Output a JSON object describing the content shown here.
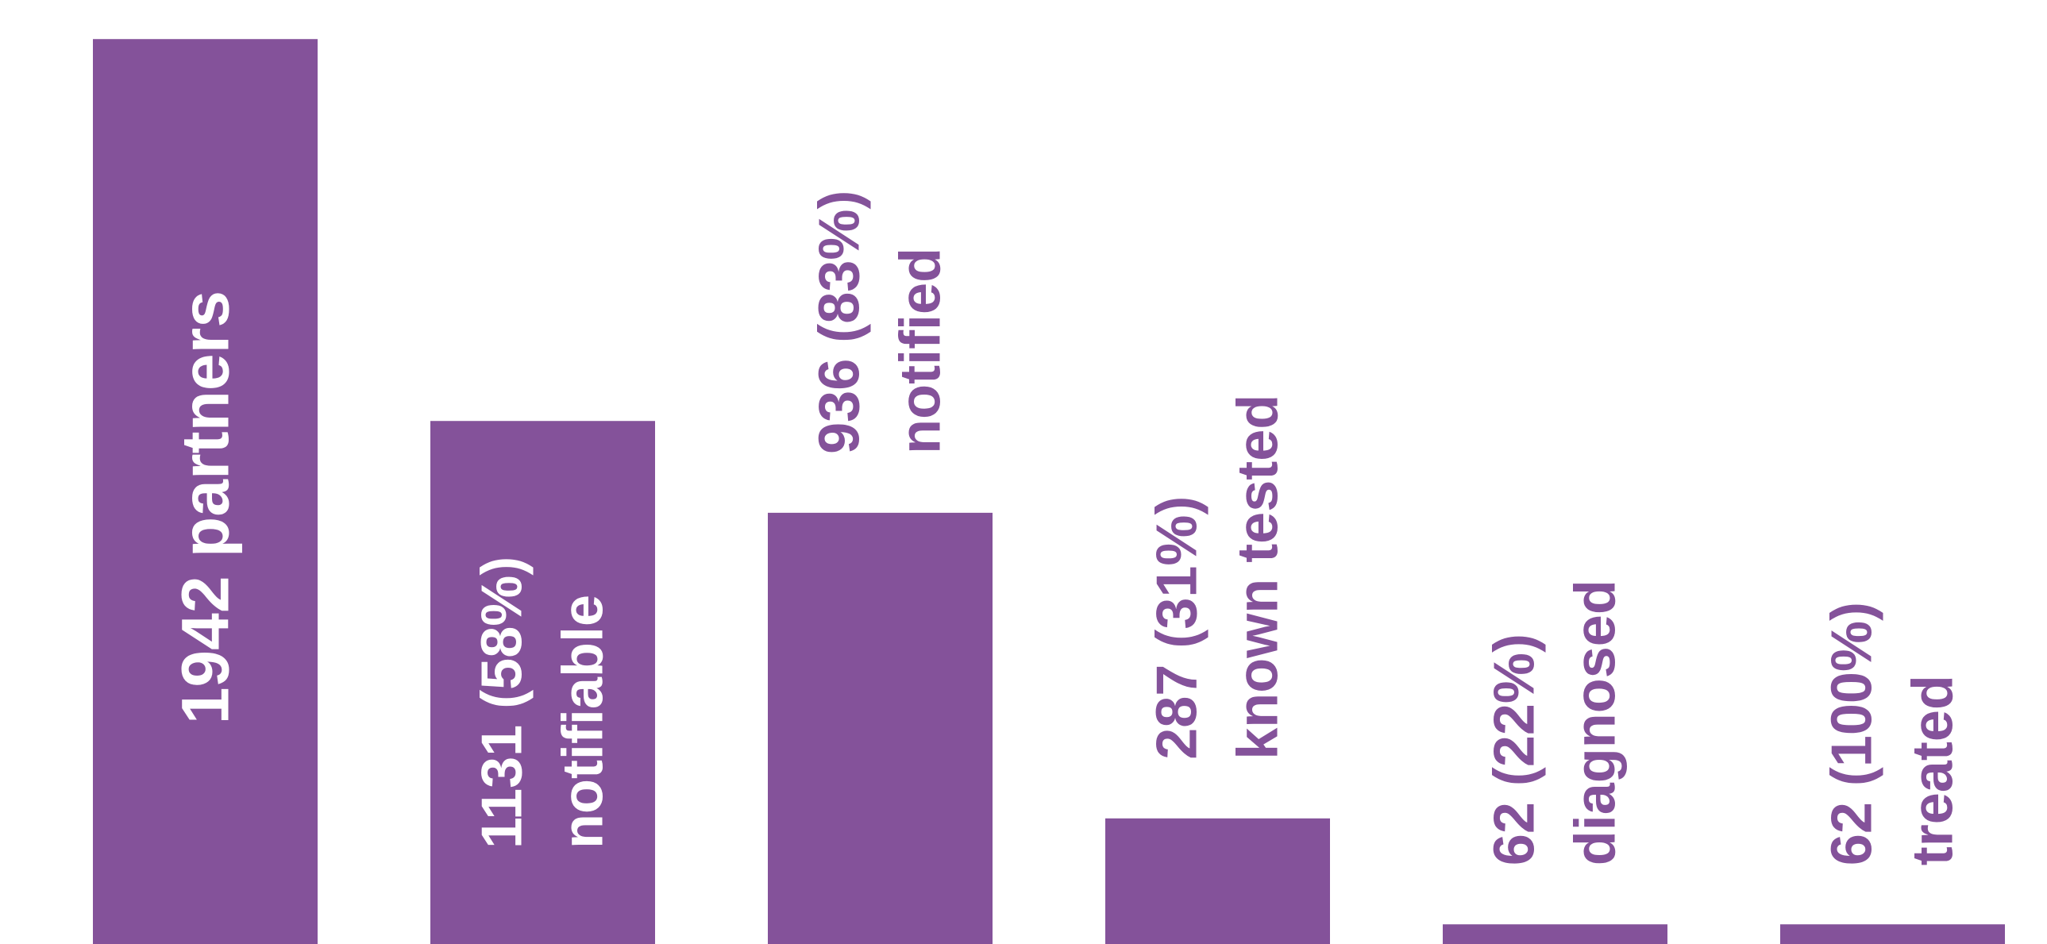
{
  "chart_data": {
    "type": "bar",
    "categories": [
      "partners",
      "notifiable",
      "notified",
      "known tested",
      "diagnosed",
      "treated"
    ],
    "values": [
      1942,
      1131,
      936,
      287,
      62,
      62
    ],
    "value_labels": [
      "1942",
      "1131 (58%)",
      "936 (83%)",
      "287 (31%)",
      "62 (22%)",
      "62 (100%)"
    ],
    "color": "#84529a",
    "ylim": [
      0,
      2025
    ]
  }
}
